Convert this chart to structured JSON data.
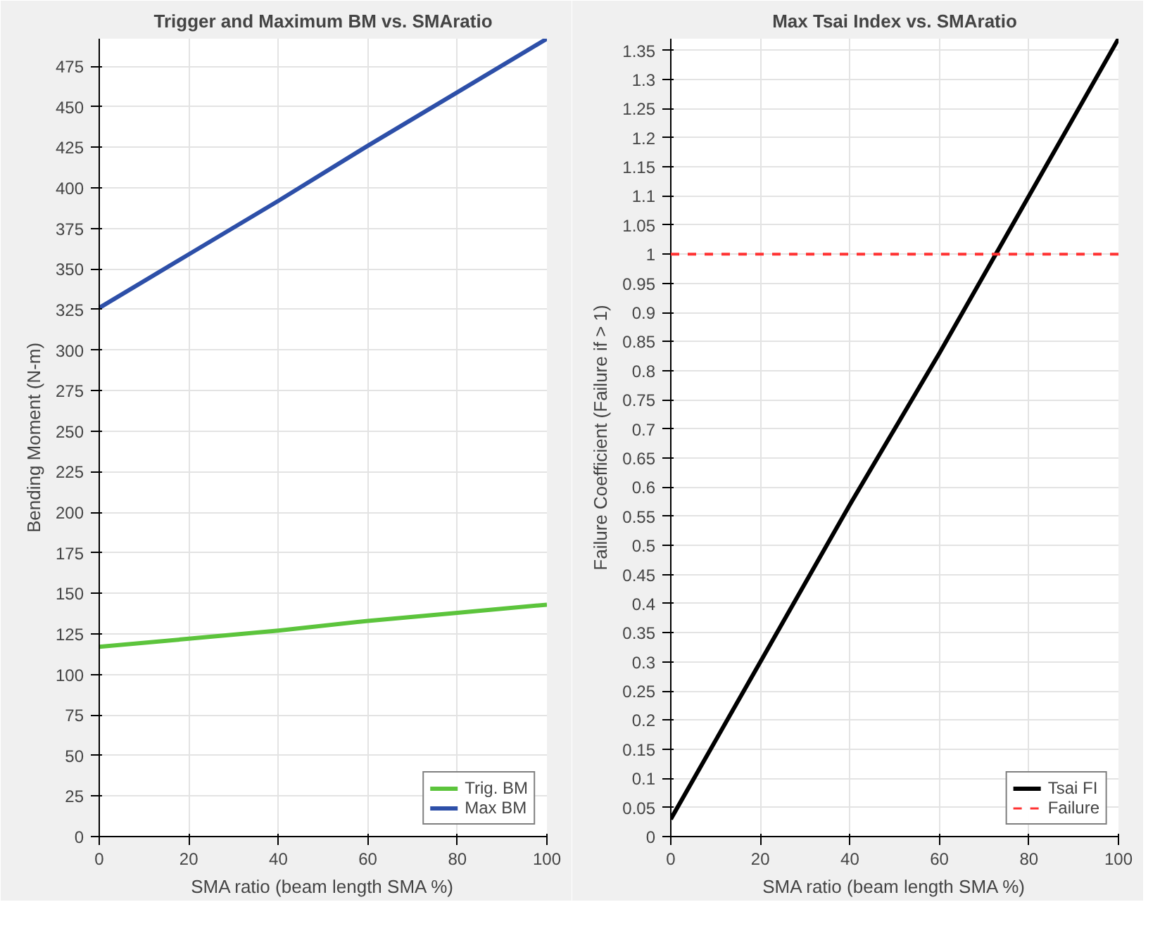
{
  "chart_data": [
    {
      "type": "line",
      "title": "Trigger and Maximum BM vs. SMAratio",
      "xlabel": "SMA ratio (beam length SMA %)",
      "ylabel": "Bending Moment (N-m)",
      "x": [
        0,
        20,
        40,
        60,
        80,
        100
      ],
      "series": [
        {
          "name": "Trig. BM",
          "color": "#5cc43c",
          "values": [
            117,
            122,
            127,
            133,
            138,
            143
          ]
        },
        {
          "name": "Max BM",
          "color": "#2d4fa8",
          "values": [
            326,
            359,
            392,
            426,
            459,
            492
          ]
        }
      ],
      "xlim": [
        0,
        100
      ],
      "xticks": [
        0,
        20,
        40,
        60,
        80,
        100
      ],
      "ylim": [
        0,
        492
      ],
      "yticks": [
        0,
        25,
        50,
        75,
        100,
        125,
        150,
        175,
        200,
        225,
        250,
        275,
        300,
        325,
        350,
        375,
        400,
        425,
        450,
        475
      ],
      "grid": true,
      "legend": "bottom right",
      "line_style": "solid"
    },
    {
      "type": "line",
      "title": "Max Tsai Index vs. SMAratio",
      "xlabel": "SMA ratio (beam length SMA %)",
      "ylabel": "Failure Coefficient (Failure if > 1)",
      "x": [
        0,
        20,
        40,
        60,
        80,
        100
      ],
      "series": [
        {
          "name": "Tsai FI",
          "color": "#000000",
          "values": [
            0.03,
            0.3,
            0.57,
            0.83,
            1.1,
            1.37
          ]
        }
      ],
      "ref_lines": [
        {
          "axis": "y",
          "value": 1,
          "label": "Failure",
          "color": "#ff3333",
          "line_style": "dashed"
        }
      ],
      "xlim": [
        0,
        100
      ],
      "xticks": [
        0,
        20,
        40,
        60,
        80,
        100
      ],
      "ylim": [
        0,
        1.37
      ],
      "yticks": [
        0,
        0.05,
        0.1,
        0.15,
        0.2,
        0.25,
        0.3,
        0.35,
        0.4,
        0.45,
        0.5,
        0.55,
        0.6,
        0.65,
        0.7,
        0.75,
        0.8,
        0.85,
        0.9,
        0.95,
        1,
        1.05,
        1.1,
        1.15,
        1.2,
        1.25,
        1.3,
        1.35
      ],
      "grid": true,
      "legend": "bottom right",
      "line_style": "solid"
    }
  ]
}
